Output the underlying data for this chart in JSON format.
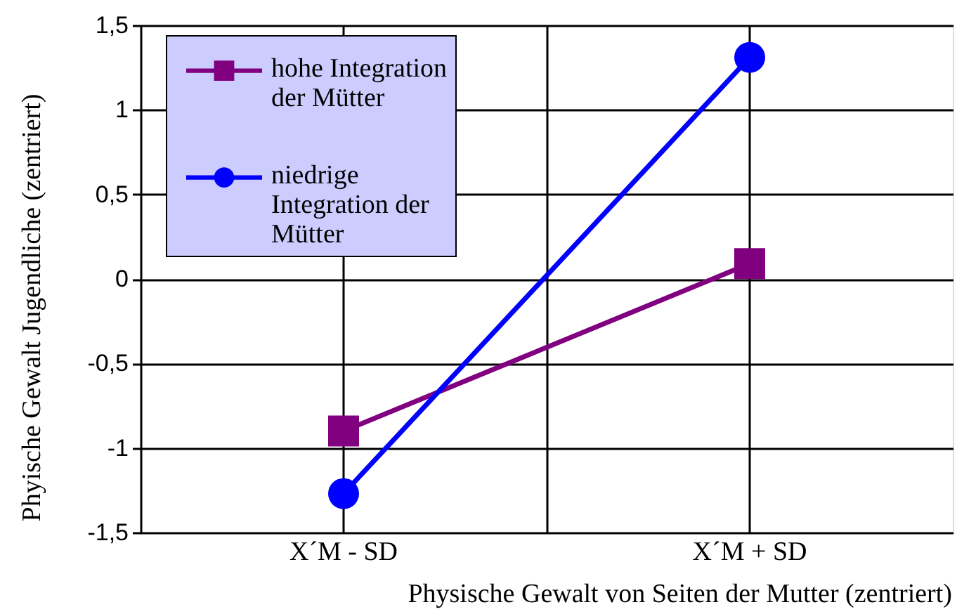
{
  "chart_data": {
    "type": "line",
    "xlabel": "Physische Gewalt von Seiten der Mutter (zentriert)",
    "ylabel": "Phyische Gewalt Jugendliche (zentriert)",
    "categories": [
      "X´M - SD",
      "X´M + SD"
    ],
    "series": [
      {
        "name": "hohe Integration der Mütter",
        "color": "#800080",
        "marker": "square",
        "values": [
          -0.9,
          0.09
        ]
      },
      {
        "name": "niedrige Integration der Mütter",
        "color": "#0000ff",
        "marker": "circle",
        "values": [
          -1.27,
          1.31
        ]
      }
    ],
    "ylim": [
      -1.5,
      1.5
    ],
    "yticks": [
      {
        "value": -1.5,
        "label": "-1,5"
      },
      -1,
      {
        "value": -0.5,
        "label": "-0,5"
      },
      0,
      {
        "value": 0.5,
        "label": "0,5"
      },
      1,
      {
        "value": 1.5,
        "label": "1,5"
      }
    ],
    "grid": true,
    "legend": "top left"
  }
}
